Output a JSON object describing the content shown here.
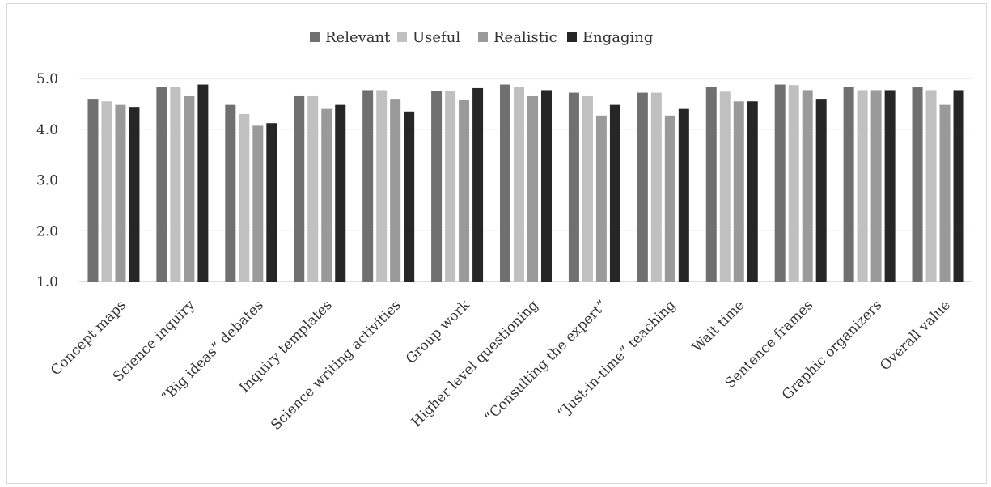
{
  "chart_data": {
    "type": "bar",
    "categories": [
      "Concept maps",
      "Science inquiry",
      "“Big ideas” debates",
      "Inquiry templates",
      "Science writing activities",
      "Group work",
      "Higher level questioning",
      "“Consulting the expert”",
      "“Just-in-time” teaching",
      "Wait time",
      "Sentence frames",
      "Graphic organizers",
      "Overall value"
    ],
    "series": [
      {
        "name": "Relevant",
        "color": "#707070",
        "values": [
          4.6,
          4.83,
          4.48,
          4.65,
          4.77,
          4.75,
          4.88,
          4.72,
          4.72,
          4.83,
          4.88,
          4.83,
          4.83
        ]
      },
      {
        "name": "Useful",
        "color": "#c0c0c0",
        "values": [
          4.55,
          4.83,
          4.3,
          4.65,
          4.77,
          4.75,
          4.83,
          4.65,
          4.72,
          4.74,
          4.87,
          4.77,
          4.77
        ]
      },
      {
        "name": "Realistic",
        "color": "#9a9a9a",
        "values": [
          4.48,
          4.65,
          4.07,
          4.4,
          4.6,
          4.57,
          4.65,
          4.27,
          4.27,
          4.55,
          4.77,
          4.77,
          4.48
        ]
      },
      {
        "name": "Engaging",
        "color": "#262626",
        "values": [
          4.44,
          4.88,
          4.12,
          4.48,
          4.35,
          4.81,
          4.77,
          4.48,
          4.4,
          4.55,
          4.6,
          4.77,
          4.77
        ]
      }
    ],
    "ylim": [
      1.0,
      5.0
    ],
    "yticks": [
      "1.0",
      "2.0",
      "3.0",
      "4.0",
      "5.0"
    ],
    "grid": true,
    "legend_position": "top-center",
    "title": "",
    "xlabel": "",
    "ylabel": ""
  }
}
